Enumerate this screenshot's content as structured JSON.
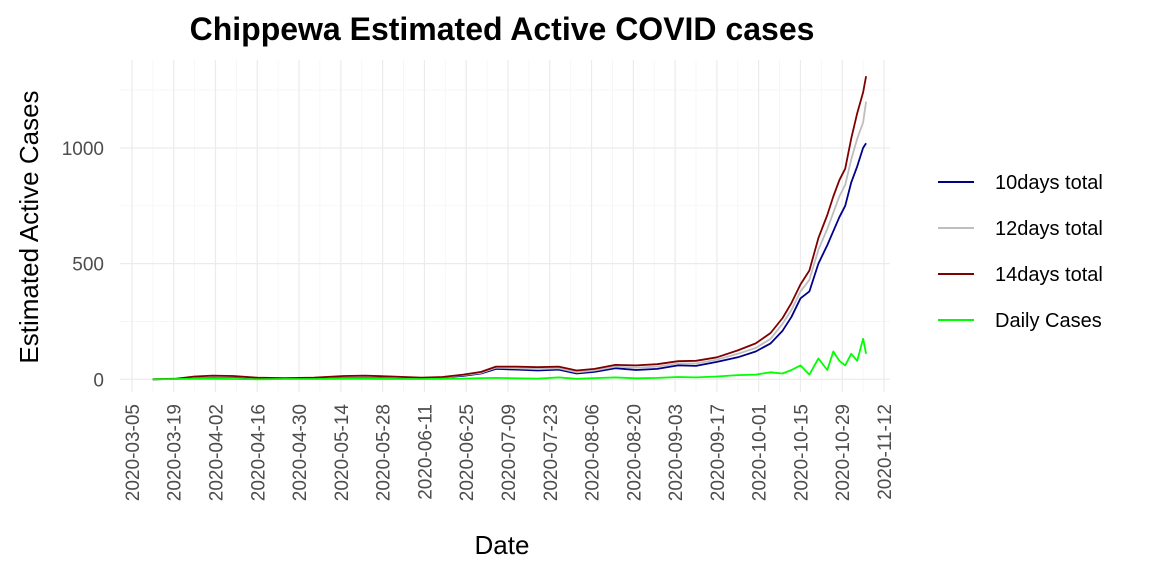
{
  "chart_data": {
    "type": "line",
    "title": "Chippewa Estimated Active COVID cases",
    "xlabel": "Date",
    "ylabel": "Estimated Active Cases",
    "x_tick_labels": [
      "2020-03-05",
      "2020-03-19",
      "2020-04-02",
      "2020-04-16",
      "2020-04-30",
      "2020-05-14",
      "2020-05-28",
      "2020-06-11",
      "2020-06-25",
      "2020-07-09",
      "2020-07-23",
      "2020-08-06",
      "2020-08-20",
      "2020-09-03",
      "2020-09-17",
      "2020-10-01",
      "2020-10-15",
      "2020-10-29",
      "2020-11-12"
    ],
    "y_ticks": [
      0,
      500,
      1000
    ],
    "xlim": [
      "2020-03-01",
      "2020-11-14"
    ],
    "ylim": [
      -55,
      1380
    ],
    "grid": true,
    "legend_position": "right",
    "x": [
      "2020-03-12",
      "2020-03-20",
      "2020-03-26",
      "2020-04-01",
      "2020-04-08",
      "2020-04-16",
      "2020-04-25",
      "2020-05-05",
      "2020-05-15",
      "2020-05-22",
      "2020-05-31",
      "2020-06-10",
      "2020-06-17",
      "2020-06-24",
      "2020-06-30",
      "2020-07-05",
      "2020-07-12",
      "2020-07-19",
      "2020-07-26",
      "2020-08-01",
      "2020-08-07",
      "2020-08-14",
      "2020-08-21",
      "2020-08-28",
      "2020-09-04",
      "2020-09-10",
      "2020-09-17",
      "2020-09-24",
      "2020-09-30",
      "2020-10-05",
      "2020-10-09",
      "2020-10-12",
      "2020-10-15",
      "2020-10-18",
      "2020-10-21",
      "2020-10-24",
      "2020-10-26",
      "2020-10-28",
      "2020-10-30",
      "2020-11-01",
      "2020-11-03",
      "2020-11-05",
      "2020-11-06"
    ],
    "series": [
      {
        "name": "10days total",
        "color": "#00008b",
        "values": [
          0,
          2,
          8,
          12,
          10,
          5,
          3,
          5,
          10,
          12,
          8,
          5,
          8,
          15,
          25,
          45,
          42,
          38,
          42,
          25,
          32,
          48,
          40,
          45,
          60,
          58,
          75,
          95,
          120,
          155,
          210,
          270,
          350,
          380,
          500,
          580,
          640,
          700,
          750,
          850,
          920,
          1000,
          1020
        ]
      },
      {
        "name": "12days total",
        "color": "#bebebe",
        "values": [
          0,
          2,
          10,
          14,
          12,
          6,
          4,
          6,
          12,
          14,
          10,
          6,
          9,
          18,
          28,
          50,
          48,
          44,
          48,
          30,
          38,
          55,
          50,
          55,
          68,
          68,
          85,
          110,
          135,
          175,
          240,
          300,
          380,
          430,
          560,
          650,
          720,
          790,
          840,
          950,
          1040,
          1110,
          1200
        ]
      },
      {
        "name": "14days total",
        "color": "#7f0000",
        "values": [
          0,
          3,
          12,
          16,
          14,
          7,
          5,
          7,
          14,
          16,
          12,
          7,
          10,
          20,
          32,
          55,
          55,
          52,
          55,
          38,
          45,
          62,
          60,
          65,
          78,
          80,
          95,
          125,
          155,
          200,
          265,
          330,
          410,
          470,
          610,
          710,
          790,
          860,
          910,
          1040,
          1150,
          1240,
          1310
        ]
      },
      {
        "name": "Daily Cases",
        "color": "#00ff00",
        "values": [
          0,
          1,
          2,
          2,
          1,
          0,
          1,
          1,
          2,
          2,
          1,
          1,
          2,
          3,
          5,
          6,
          4,
          3,
          8,
          2,
          5,
          8,
          4,
          6,
          10,
          8,
          12,
          18,
          20,
          30,
          25,
          40,
          60,
          20,
          90,
          40,
          120,
          80,
          60,
          110,
          80,
          175,
          110
        ]
      }
    ]
  }
}
